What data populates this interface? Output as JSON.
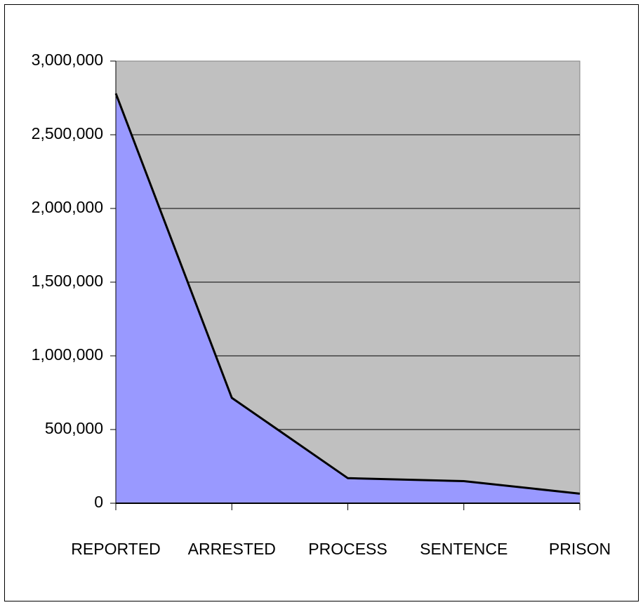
{
  "chart_data": {
    "type": "area",
    "categories": [
      "REPORTED",
      "ARRESTED",
      "PROCESS",
      "SENTENCE",
      "PRISON"
    ],
    "values": [
      2780000,
      715000,
      170000,
      150000,
      65000
    ],
    "color": "#9999ff",
    "ylim": [
      0,
      3000000
    ],
    "yticks": [
      0,
      {
        "value": 500000,
        "label": "500,000"
      },
      {
        "value": 1000000,
        "label": "1,000,000"
      },
      {
        "value": 1500000,
        "label": "1,500,000"
      },
      {
        "value": 2000000,
        "label": "2,000,000"
      },
      {
        "value": 2500000,
        "label": "2,500,000"
      },
      {
        "value": 3000000,
        "label": "3,000,000"
      }
    ],
    "grid": true
  }
}
